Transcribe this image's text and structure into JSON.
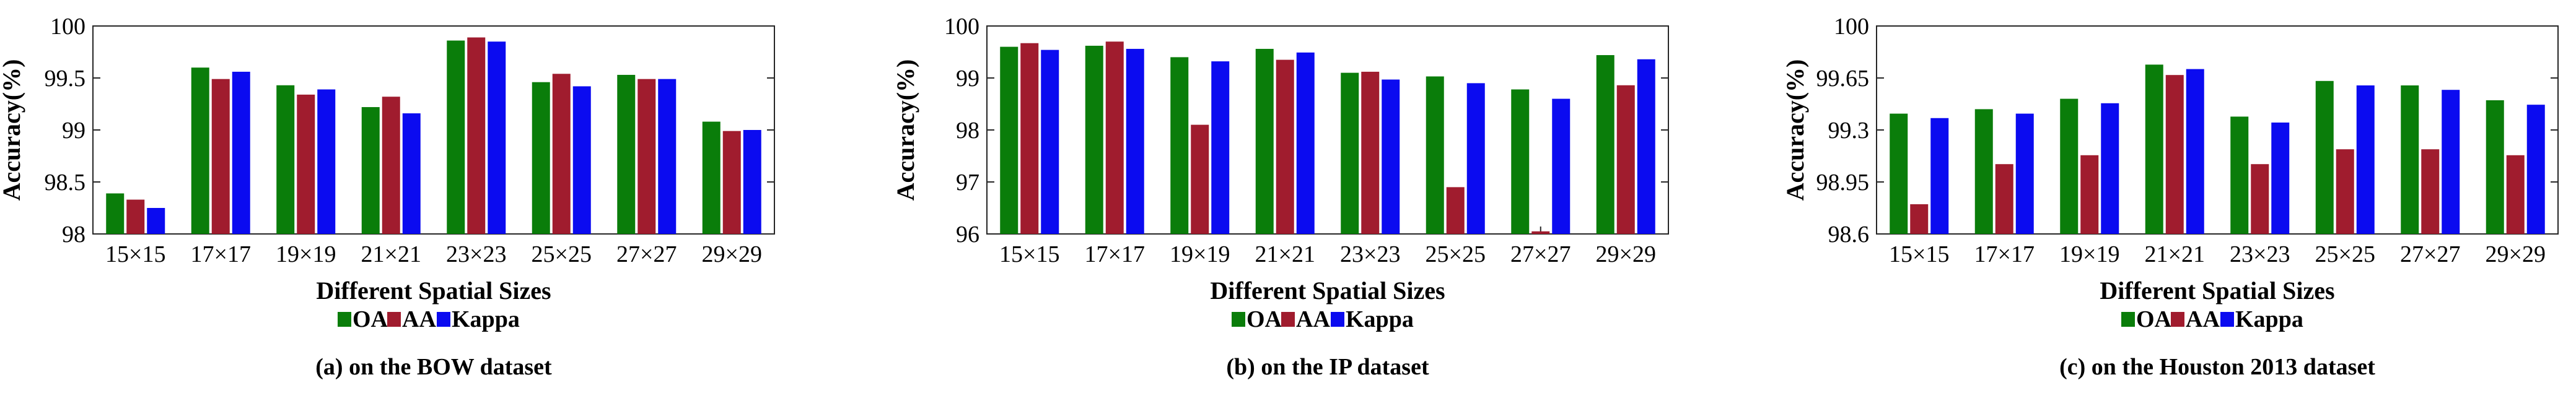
{
  "colors": {
    "OA": "#0a7d0a",
    "AA": "#a01c2e",
    "Kappa": "#0b0bf0"
  },
  "chart_data": [
    {
      "type": "bar",
      "caption": "(a) on the BOW dataset",
      "xlabel": "Different Spatial Sizes",
      "ylabel": "Accuracy(%)",
      "ylim": [
        98,
        100
      ],
      "yticks": [
        "98",
        "98.5",
        "99",
        "99.5",
        "100"
      ],
      "categories": [
        "15×15",
        "17×17",
        "19×19",
        "21×21",
        "23×23",
        "25×25",
        "27×27",
        "29×29"
      ],
      "series": [
        {
          "name": "OA",
          "values": [
            98.39,
            99.6,
            99.43,
            99.22,
            99.86,
            99.46,
            99.53,
            99.08
          ]
        },
        {
          "name": "AA",
          "values": [
            98.33,
            99.49,
            99.34,
            99.32,
            99.89,
            99.54,
            99.49,
            98.99
          ]
        },
        {
          "name": "Kappa",
          "values": [
            98.25,
            99.56,
            99.39,
            99.16,
            99.85,
            99.42,
            99.49,
            99.0
          ]
        }
      ],
      "legend": "bottom"
    },
    {
      "type": "bar",
      "caption": "(b) on the IP dataset",
      "xlabel": "Different Spatial Sizes",
      "ylabel": "Accuracy(%)",
      "ylim": [
        96,
        100
      ],
      "yticks": [
        "96",
        "97",
        "98",
        "99",
        "100"
      ],
      "categories": [
        "15×15",
        "17×17",
        "19×19",
        "21×21",
        "23×23",
        "25×25",
        "27×27",
        "29×29"
      ],
      "series": [
        {
          "name": "OA",
          "values": [
            99.6,
            99.62,
            99.4,
            99.56,
            99.1,
            99.03,
            98.78,
            99.44
          ]
        },
        {
          "name": "AA",
          "values": [
            99.67,
            99.7,
            98.1,
            99.35,
            99.12,
            96.9,
            96.05,
            98.86
          ]
        },
        {
          "name": "Kappa",
          "values": [
            99.54,
            99.56,
            99.32,
            99.49,
            98.97,
            98.9,
            98.6,
            99.36
          ]
        }
      ],
      "legend": "bottom"
    },
    {
      "type": "bar",
      "caption": "(c) on the Houston 2013 dataset",
      "xlabel": "Different Spatial Sizes",
      "ylabel": "Accuracy(%)",
      "ylim": [
        98.6,
        100
      ],
      "yticks": [
        "98.6",
        "98.95",
        "99.3",
        "99.65",
        "100"
      ],
      "categories": [
        "15×15",
        "17×17",
        "19×19",
        "21×21",
        "23×23",
        "25×25",
        "27×27",
        "29×29"
      ],
      "series": [
        {
          "name": "OA",
          "values": [
            99.41,
            99.44,
            99.51,
            99.74,
            99.39,
            99.63,
            99.6,
            99.5
          ]
        },
        {
          "name": "AA",
          "values": [
            98.8,
            99.07,
            99.13,
            99.67,
            99.07,
            99.17,
            99.17,
            99.13
          ]
        },
        {
          "name": "Kappa",
          "values": [
            99.38,
            99.41,
            99.48,
            99.71,
            99.35,
            99.6,
            99.57,
            99.47
          ]
        }
      ],
      "legend": "bottom"
    }
  ]
}
